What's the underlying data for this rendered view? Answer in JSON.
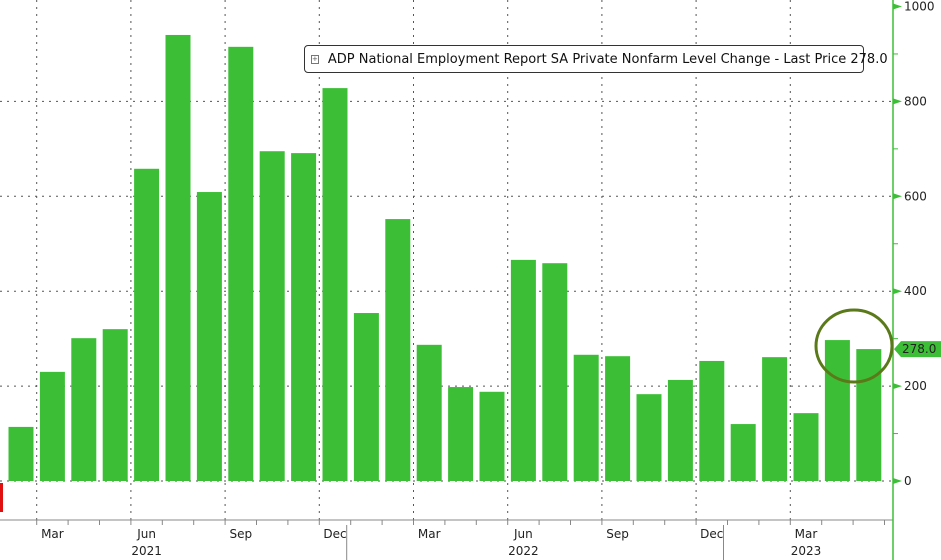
{
  "chart_data": {
    "type": "bar",
    "title": "ADP National Employment Report SA Private Nonfarm Level Change - Last Price 278.0",
    "legend": {
      "label": "ADP National Employment Report SA Private Nonfarm Level Change - Last Price 278.0",
      "placement": "top-right"
    },
    "categories": [
      "Feb 2021",
      "Mar 2021",
      "Apr 2021",
      "May 2021",
      "Jun 2021",
      "Jul 2021",
      "Aug 2021",
      "Sep 2021",
      "Oct 2021",
      "Nov 2021",
      "Dec 2021",
      "Jan 2022",
      "Feb 2022",
      "Mar 2022",
      "Apr 2022",
      "May 2022",
      "Jun 2022",
      "Jul 2022",
      "Aug 2022",
      "Sep 2022",
      "Oct 2022",
      "Nov 2022",
      "Dec 2022",
      "Jan 2023",
      "Feb 2023",
      "Mar 2023",
      "Apr 2023",
      "May 2023"
    ],
    "values": [
      114,
      230,
      301,
      320,
      658,
      940,
      609,
      915,
      695,
      691,
      828,
      354,
      552,
      287,
      198,
      188,
      466,
      459,
      266,
      263,
      183,
      213,
      253,
      120,
      261,
      143,
      297,
      278
    ],
    "ylim": [
      -100,
      1000
    ],
    "yticks": [
      "0",
      "200",
      "400",
      "600",
      "800",
      "1000"
    ],
    "ytick_values": [
      0,
      200,
      400,
      600,
      800,
      1000
    ],
    "xtick_labels": [
      {
        "label": "Mar",
        "index": 1
      },
      {
        "label": "Jun",
        "index": 4
      },
      {
        "label": "Sep",
        "index": 7
      },
      {
        "label": "Dec",
        "index": 10
      },
      {
        "label": "Mar",
        "index": 13
      },
      {
        "label": "Jun",
        "index": 16
      },
      {
        "label": "Sep",
        "index": 19
      },
      {
        "label": "Dec",
        "index": 22
      },
      {
        "label": "Mar",
        "index": 25
      }
    ],
    "year_labels": [
      {
        "label": "2021",
        "index": 4
      },
      {
        "label": "2022",
        "index": 16
      },
      {
        "label": "2023",
        "index": 25
      }
    ],
    "last_value_label": "278.0",
    "highlight": "circle around Apr-May 2023 bars",
    "grid": true,
    "colors": {
      "bar": "#3cbf36",
      "axis": "#3cbf36",
      "circle": "#5a7a1a"
    }
  }
}
